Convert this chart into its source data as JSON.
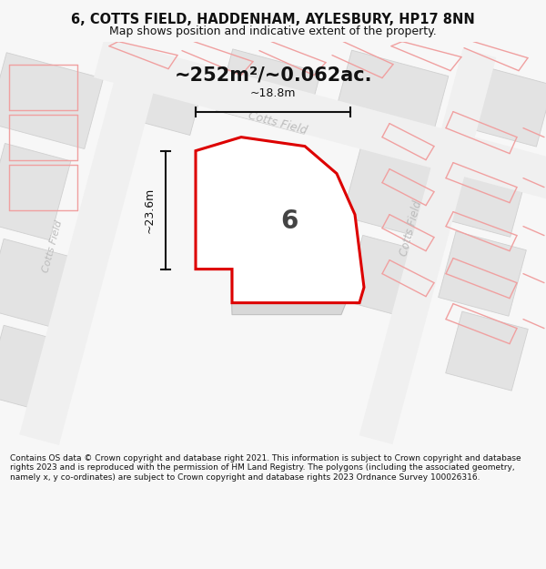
{
  "title": "6, COTTS FIELD, HADDENHAM, AYLESBURY, HP17 8NN",
  "subtitle": "Map shows position and indicative extent of the property.",
  "area_label": "~252m²/~0.062ac.",
  "number_label": "6",
  "dim_height": "~23.6m",
  "dim_width": "~18.8m",
  "footer": "Contains OS data © Crown copyright and database right 2021. This information is subject to Crown copyright and database rights 2023 and is reproduced with the permission of HM Land Registry. The polygons (including the associated geometry, namely x, y co-ordinates) are subject to Crown copyright and database rights 2023 Ordnance Survey 100026316.",
  "bg_color": "#f7f7f7",
  "map_bg": "#eeeeee",
  "pink_line_color": "#f0a0a0",
  "red_outline_color": "#dd0000",
  "dim_line_color": "#111111",
  "road_text_color": "#bbbbbb",
  "title_color": "#111111",
  "footer_color": "#111111",
  "building_fill": "#e0e0e0",
  "building_edge": "#cccccc",
  "road_fill": "#f5f5f5",
  "prop_fill": "#ffffff",
  "inner_fill": "#d8d8d8",
  "inner_edge": "#c0c0c0"
}
